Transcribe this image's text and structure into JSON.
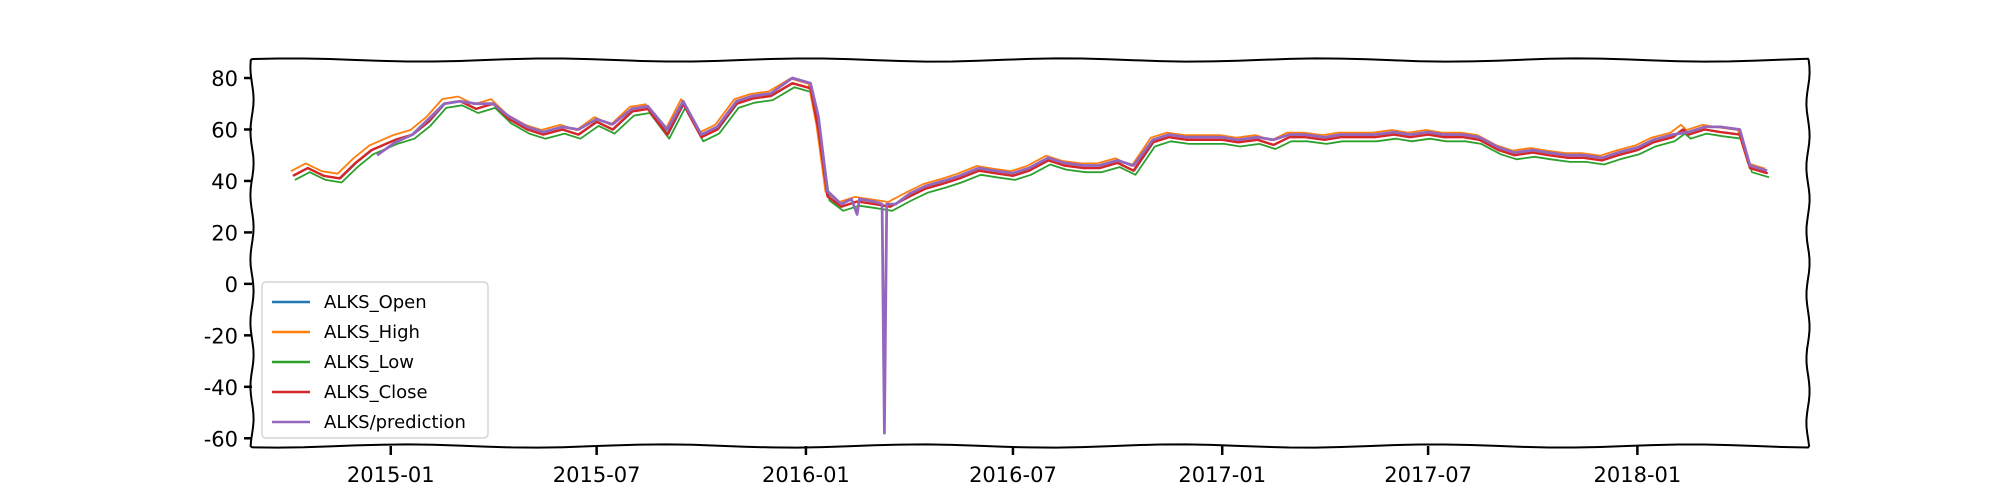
{
  "chart_data": {
    "type": "line",
    "title": "",
    "xlabel": "",
    "ylabel": "",
    "xlim": [
      "2014-09-01",
      "2018-05-31"
    ],
    "ylim": [
      -63,
      87
    ],
    "y_ticks": [
      80,
      60,
      40,
      20,
      0,
      -20,
      -40,
      -60
    ],
    "y_tick_labels": [
      "80",
      "60",
      "40",
      "20",
      "0",
      "-20",
      "-40",
      "-60"
    ],
    "x_ticks": [
      "2015-01-01",
      "2015-07-01",
      "2016-01-01",
      "2016-07-01",
      "2017-01-01",
      "2017-07-01",
      "2018-01-01"
    ],
    "x_tick_labels": [
      "2015-01",
      "2015-07",
      "2016-01",
      "2016-07",
      "2017-01",
      "2017-07",
      "2018-01"
    ],
    "grid": false,
    "legend_position": "lower-left",
    "series": [
      {
        "name": "ALKS_Open",
        "color": "#1f77b4"
      },
      {
        "name": "ALKS_High",
        "color": "#ff7f0e"
      },
      {
        "name": "ALKS_Low",
        "color": "#2ca02c"
      },
      {
        "name": "ALKS_Close",
        "color": "#d62728"
      },
      {
        "name": "ALKS/prediction",
        "color": "#9467bd"
      }
    ],
    "close_points": [
      [
        "2014-10-07",
        42
      ],
      [
        "2014-10-20",
        45
      ],
      [
        "2014-11-03",
        42
      ],
      [
        "2014-11-17",
        41
      ],
      [
        "2014-12-01",
        47
      ],
      [
        "2014-12-15",
        52
      ],
      [
        "2015-01-05",
        56
      ],
      [
        "2015-01-20",
        58
      ],
      [
        "2015-02-03",
        63
      ],
      [
        "2015-02-17",
        70
      ],
      [
        "2015-03-03",
        71
      ],
      [
        "2015-03-17",
        68
      ],
      [
        "2015-04-01",
        70
      ],
      [
        "2015-04-15",
        64
      ],
      [
        "2015-05-01",
        60
      ],
      [
        "2015-05-15",
        58
      ],
      [
        "2015-06-01",
        60
      ],
      [
        "2015-06-15",
        58
      ],
      [
        "2015-07-01",
        63
      ],
      [
        "2015-07-15",
        60
      ],
      [
        "2015-08-01",
        67
      ],
      [
        "2015-08-15",
        68
      ],
      [
        "2015-09-01",
        58
      ],
      [
        "2015-09-15",
        70
      ],
      [
        "2015-10-01",
        57
      ],
      [
        "2015-10-15",
        60
      ],
      [
        "2015-11-01",
        70
      ],
      [
        "2015-11-15",
        72
      ],
      [
        "2015-12-01",
        73
      ],
      [
        "2015-12-20",
        78
      ],
      [
        "2016-01-05",
        76
      ],
      [
        "2016-01-12",
        60
      ],
      [
        "2016-01-20",
        34
      ],
      [
        "2016-02-01",
        30
      ],
      [
        "2016-02-15",
        32
      ],
      [
        "2016-03-01",
        31
      ],
      [
        "2016-03-15",
        30
      ],
      [
        "2016-04-01",
        34
      ],
      [
        "2016-04-15",
        37
      ],
      [
        "2016-05-01",
        39
      ],
      [
        "2016-05-15",
        41
      ],
      [
        "2016-06-01",
        44
      ],
      [
        "2016-06-15",
        43
      ],
      [
        "2016-07-01",
        42
      ],
      [
        "2016-07-15",
        44
      ],
      [
        "2016-08-01",
        48
      ],
      [
        "2016-08-15",
        46
      ],
      [
        "2016-09-01",
        45
      ],
      [
        "2016-09-15",
        45
      ],
      [
        "2016-10-01",
        47
      ],
      [
        "2016-10-15",
        44
      ],
      [
        "2016-11-01",
        55
      ],
      [
        "2016-11-15",
        57
      ],
      [
        "2016-12-01",
        56
      ],
      [
        "2016-12-15",
        56
      ],
      [
        "2017-01-01",
        56
      ],
      [
        "2017-01-15",
        55
      ],
      [
        "2017-02-01",
        56
      ],
      [
        "2017-02-15",
        54
      ],
      [
        "2017-03-01",
        57
      ],
      [
        "2017-03-15",
        57
      ],
      [
        "2017-04-01",
        56
      ],
      [
        "2017-04-15",
        57
      ],
      [
        "2017-05-01",
        57
      ],
      [
        "2017-05-15",
        57
      ],
      [
        "2017-06-01",
        58
      ],
      [
        "2017-06-15",
        57
      ],
      [
        "2017-07-01",
        58
      ],
      [
        "2017-07-15",
        57
      ],
      [
        "2017-08-01",
        57
      ],
      [
        "2017-08-15",
        56
      ],
      [
        "2017-09-01",
        52
      ],
      [
        "2017-09-15",
        50
      ],
      [
        "2017-10-01",
        51
      ],
      [
        "2017-10-15",
        50
      ],
      [
        "2017-11-01",
        49
      ],
      [
        "2017-11-15",
        49
      ],
      [
        "2017-12-01",
        48
      ],
      [
        "2017-12-15",
        50
      ],
      [
        "2018-01-01",
        52
      ],
      [
        "2018-01-15",
        55
      ],
      [
        "2018-02-01",
        57
      ],
      [
        "2018-02-10",
        60
      ],
      [
        "2018-02-15",
        58
      ],
      [
        "2018-03-01",
        60
      ],
      [
        "2018-03-15",
        59
      ],
      [
        "2018-04-01",
        58
      ],
      [
        "2018-04-10",
        45
      ],
      [
        "2018-04-25",
        43
      ]
    ],
    "prediction_points": [
      [
        "2014-12-20",
        50
      ],
      [
        "2015-01-05",
        55
      ],
      [
        "2015-01-20",
        58
      ],
      [
        "2015-02-03",
        64
      ],
      [
        "2015-02-17",
        70
      ],
      [
        "2015-03-03",
        71
      ],
      [
        "2015-03-17",
        70
      ],
      [
        "2015-04-01",
        70
      ],
      [
        "2015-04-15",
        65
      ],
      [
        "2015-05-01",
        61
      ],
      [
        "2015-05-15",
        59
      ],
      [
        "2015-06-01",
        61
      ],
      [
        "2015-06-15",
        60
      ],
      [
        "2015-07-01",
        64
      ],
      [
        "2015-07-15",
        62
      ],
      [
        "2015-08-01",
        68
      ],
      [
        "2015-08-15",
        69
      ],
      [
        "2015-09-01",
        60
      ],
      [
        "2015-09-15",
        71
      ],
      [
        "2015-10-01",
        58
      ],
      [
        "2015-10-15",
        61
      ],
      [
        "2015-11-01",
        71
      ],
      [
        "2015-11-15",
        73
      ],
      [
        "2015-12-01",
        74
      ],
      [
        "2015-12-20",
        80
      ],
      [
        "2016-01-05",
        78
      ],
      [
        "2016-01-12",
        65
      ],
      [
        "2016-01-20",
        36
      ],
      [
        "2016-02-01",
        31
      ],
      [
        "2016-02-10",
        33
      ],
      [
        "2016-02-15",
        27
      ],
      [
        "2016-02-17",
        33
      ],
      [
        "2016-03-01",
        32
      ],
      [
        "2016-03-08",
        31
      ],
      [
        "2016-03-10",
        -58
      ],
      [
        "2016-03-12",
        31
      ],
      [
        "2016-03-20",
        31
      ],
      [
        "2016-04-01",
        35
      ],
      [
        "2016-04-15",
        38
      ],
      [
        "2016-05-01",
        40
      ],
      [
        "2016-05-15",
        42
      ],
      [
        "2016-06-01",
        45
      ],
      [
        "2016-06-15",
        44
      ],
      [
        "2016-07-01",
        43
      ],
      [
        "2016-07-15",
        45
      ],
      [
        "2016-08-01",
        49
      ],
      [
        "2016-08-15",
        47
      ],
      [
        "2016-09-01",
        46
      ],
      [
        "2016-09-15",
        46
      ],
      [
        "2016-10-01",
        48
      ],
      [
        "2016-10-15",
        46
      ],
      [
        "2016-11-01",
        56
      ],
      [
        "2016-11-15",
        58
      ],
      [
        "2016-12-01",
        57
      ],
      [
        "2016-12-15",
        57
      ],
      [
        "2017-01-01",
        57
      ],
      [
        "2017-01-15",
        56
      ],
      [
        "2017-02-01",
        57
      ],
      [
        "2017-02-15",
        56
      ],
      [
        "2017-03-01",
        58
      ],
      [
        "2017-03-15",
        58
      ],
      [
        "2017-04-01",
        57
      ],
      [
        "2017-04-15",
        58
      ],
      [
        "2017-05-01",
        58
      ],
      [
        "2017-05-15",
        58
      ],
      [
        "2017-06-01",
        59
      ],
      [
        "2017-06-15",
        58
      ],
      [
        "2017-07-01",
        59
      ],
      [
        "2017-07-15",
        58
      ],
      [
        "2017-08-01",
        58
      ],
      [
        "2017-08-15",
        57
      ],
      [
        "2017-09-01",
        53
      ],
      [
        "2017-09-15",
        51
      ],
      [
        "2017-10-01",
        52
      ],
      [
        "2017-10-15",
        51
      ],
      [
        "2017-11-01",
        50
      ],
      [
        "2017-11-15",
        50
      ],
      [
        "2017-12-01",
        49
      ],
      [
        "2017-12-15",
        51
      ],
      [
        "2018-01-01",
        53
      ],
      [
        "2018-01-15",
        56
      ],
      [
        "2018-02-01",
        58
      ],
      [
        "2018-02-15",
        59
      ],
      [
        "2018-03-01",
        61
      ],
      [
        "2018-03-15",
        61
      ],
      [
        "2018-04-01",
        60
      ],
      [
        "2018-04-10",
        46
      ],
      [
        "2018-04-25",
        44
      ]
    ]
  }
}
